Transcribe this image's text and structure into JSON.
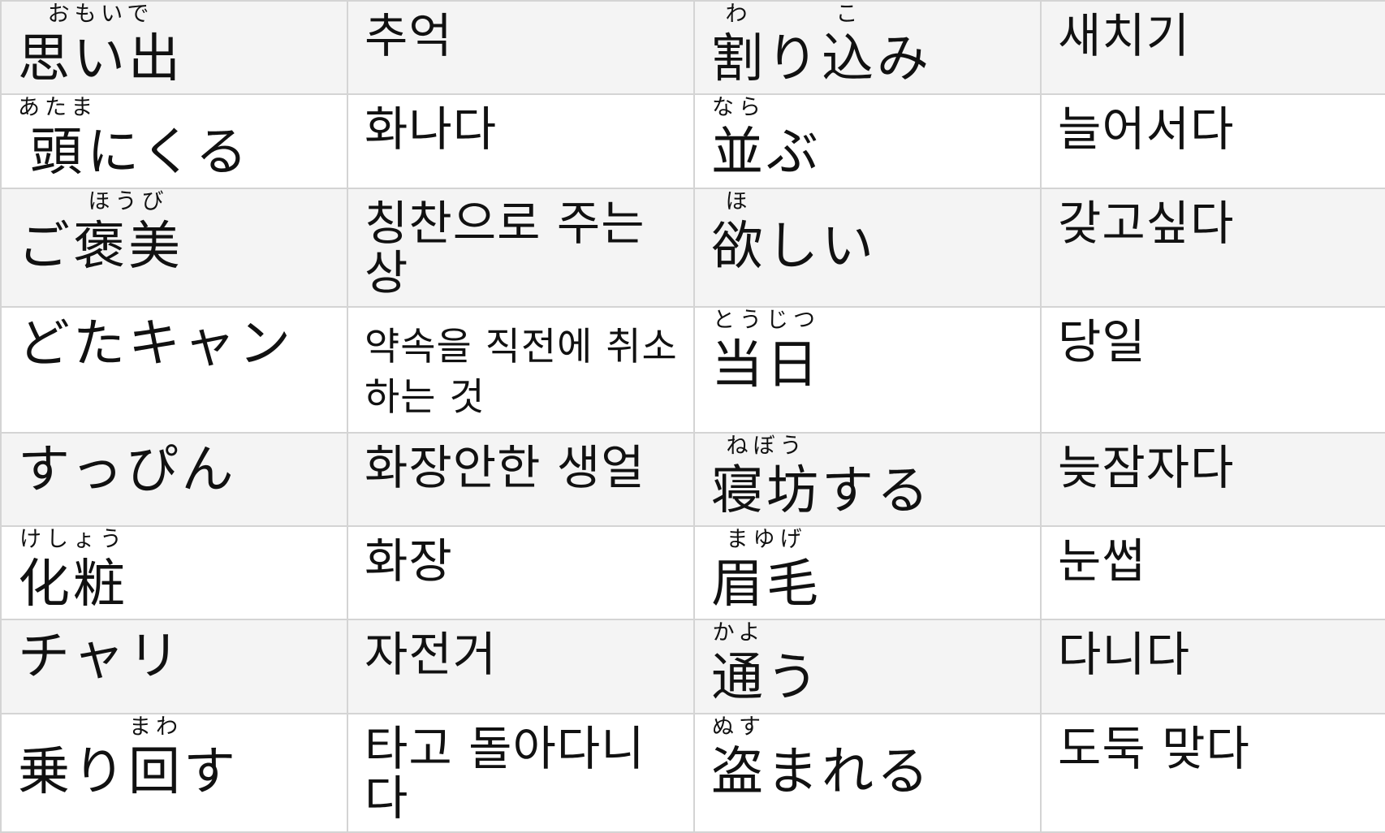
{
  "rows": [
    {
      "ja1": [
        {
          "base": "思い出",
          "ruby": "おもいで"
        }
      ],
      "ko1": "추억",
      "ja2": [
        {
          "base": "割",
          "ruby": "わ"
        },
        {
          "text": "り"
        },
        {
          "base": "込",
          "ruby": "こ"
        },
        {
          "text": "み"
        }
      ],
      "ko2": "새치기"
    },
    {
      "ja1": [
        {
          "base": "頭",
          "ruby": "あたま"
        },
        {
          "text": "にくる"
        }
      ],
      "ko1": "화나다",
      "ja2": [
        {
          "base": "並",
          "ruby": "なら"
        },
        {
          "text": "ぶ"
        }
      ],
      "ko2": "늘어서다"
    },
    {
      "ja1": [
        {
          "text": "ご"
        },
        {
          "base": "褒美",
          "ruby": "ほうび"
        }
      ],
      "ko1": "칭찬으로 주는 상",
      "ja2": [
        {
          "base": "欲",
          "ruby": "ほ"
        },
        {
          "text": "しい"
        }
      ],
      "ko2": "갖고싶다"
    },
    {
      "ja1": [
        {
          "text": "どたキャン"
        }
      ],
      "ko1": "약속을 직전에 취소하는 것",
      "ja2": [
        {
          "base": "当日",
          "ruby": "とうじつ"
        }
      ],
      "ko2": "당일"
    },
    {
      "ja1": [
        {
          "text": "すっぴん"
        }
      ],
      "ko1": "화장안한 생얼",
      "ja2": [
        {
          "base": "寝坊",
          "ruby": "ねぼう"
        },
        {
          "text": "する"
        }
      ],
      "ko2": "늦잠자다"
    },
    {
      "ja1": [
        {
          "base": "化粧",
          "ruby": "けしょう"
        }
      ],
      "ko1": "화장",
      "ja2": [
        {
          "base": "眉毛",
          "ruby": "まゆげ"
        }
      ],
      "ko2": "눈썹"
    },
    {
      "ja1": [
        {
          "text": "チャリ"
        }
      ],
      "ko1": "자전거",
      "ja2": [
        {
          "base": "通",
          "ruby": "かよ"
        },
        {
          "text": "う"
        }
      ],
      "ko2": "다니다"
    },
    {
      "ja1": [
        {
          "text": "乗り"
        },
        {
          "base": "回",
          "ruby": "まわ"
        },
        {
          "text": "す"
        }
      ],
      "ko1": "타고 돌아다니다",
      "ja2": [
        {
          "base": "盗",
          "ruby": "ぬす"
        },
        {
          "text": "まれる"
        }
      ],
      "ko2": "도둑 맞다"
    }
  ]
}
